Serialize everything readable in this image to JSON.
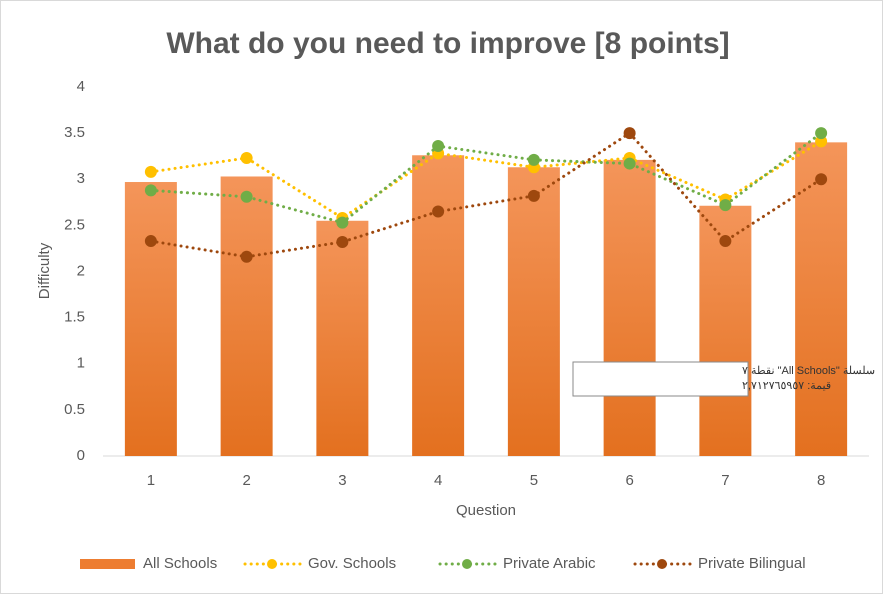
{
  "chart_data": {
    "type": "combo",
    "title": "What do you need to improve [8 points]",
    "x_label": "Question",
    "y_label": "Difficulty",
    "categories": [
      "1",
      "2",
      "3",
      "4",
      "5",
      "6",
      "7",
      "8"
    ],
    "series": [
      {
        "name": "All Schools",
        "type": "bar",
        "color": "#ed7d31",
        "values": [
          2.97,
          3.03,
          2.55,
          3.26,
          3.13,
          3.21,
          2.712765957,
          3.4
        ]
      },
      {
        "name": "Gov. Schools",
        "type": "line",
        "color": "#ffc000",
        "values": [
          3.08,
          3.23,
          2.58,
          3.28,
          3.13,
          3.23,
          2.78,
          3.41
        ]
      },
      {
        "name": "Private Arabic",
        "type": "line",
        "color": "#70ad47",
        "values": [
          2.88,
          2.81,
          2.53,
          3.36,
          3.21,
          3.17,
          2.72,
          3.5
        ]
      },
      {
        "name": "Private Bilingual",
        "type": "line",
        "color": "#9e480e",
        "values": [
          2.33,
          2.16,
          2.32,
          2.65,
          2.82,
          3.5,
          2.33,
          3.0
        ]
      }
    ],
    "ylim": [
      0,
      4
    ],
    "yticks": [
      0,
      0.5,
      1,
      1.5,
      2,
      2.5,
      3,
      3.5,
      4
    ],
    "legend": "bottom",
    "tooltip": [
      "سلسلة \"All Schools\" نقطة ٧",
      "قيمة: ٢,٧١٢٧٦٥٩٥٧"
    ]
  }
}
